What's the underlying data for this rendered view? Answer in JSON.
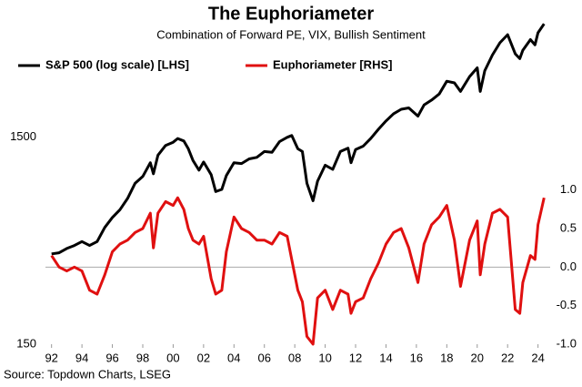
{
  "chart_data": {
    "type": "line",
    "title": "The Euphoriameter",
    "subtitle": "Combination of Forward PE, VIX, Bullish Sentiment",
    "source": "Source: Topdown Charts, LSEG",
    "legend": "top-left",
    "zero_line": true,
    "log_scale_y": true,
    "x": [
      1992.0,
      1992.5,
      1993.0,
      1993.5,
      1994.0,
      1994.5,
      1995.0,
      1995.5,
      1996.0,
      1996.5,
      1997.0,
      1997.5,
      1998.0,
      1998.5,
      1998.7,
      1999.0,
      1999.5,
      2000.0,
      2000.3,
      2000.7,
      2001.0,
      2001.3,
      2001.7,
      2002.0,
      2002.5,
      2002.8,
      2003.2,
      2003.5,
      2004.0,
      2004.5,
      2005.0,
      2005.5,
      2006.0,
      2006.5,
      2007.0,
      2007.5,
      2007.8,
      2008.2,
      2008.5,
      2008.8,
      2009.2,
      2009.5,
      2010.0,
      2010.5,
      2011.0,
      2011.5,
      2011.7,
      2012.0,
      2012.5,
      2013.0,
      2013.5,
      2014.0,
      2014.5,
      2015.0,
      2015.5,
      2016.1,
      2016.5,
      2017.0,
      2017.5,
      2018.0,
      2018.5,
      2018.9,
      2019.5,
      2020.0,
      2020.2,
      2020.5,
      2021.0,
      2021.5,
      2022.0,
      2022.5,
      2022.8,
      2023.0,
      2023.5,
      2023.8,
      2024.0,
      2024.4
    ],
    "xlim": [
      1991.6,
      2024.8
    ],
    "xticks": [
      {
        "value": 1992,
        "label": "92"
      },
      {
        "value": 1994,
        "label": "94"
      },
      {
        "value": 1996,
        "label": "96"
      },
      {
        "value": 1998,
        "label": "98"
      },
      {
        "value": 2000,
        "label": "00"
      },
      {
        "value": 2002,
        "label": "02"
      },
      {
        "value": 2004,
        "label": "04"
      },
      {
        "value": 2006,
        "label": "06"
      },
      {
        "value": 2008,
        "label": "08"
      },
      {
        "value": 2010,
        "label": "10"
      },
      {
        "value": 2012,
        "label": "12"
      },
      {
        "value": 2014,
        "label": "14"
      },
      {
        "value": 2016,
        "label": "16"
      },
      {
        "value": 2018,
        "label": "18"
      },
      {
        "value": 2020,
        "label": "20"
      },
      {
        "value": 2022,
        "label": "22"
      },
      {
        "value": 2024,
        "label": "24"
      }
    ],
    "ylim": [
      150,
      6000
    ],
    "yticks": [
      150,
      1500
    ],
    "y2lim": [
      -1,
      3.3
    ],
    "y2ticks": [
      {
        "value": -1,
        "label": "-1.0"
      },
      -0.5,
      {
        "value": 0,
        "label": "0.0"
      },
      0.5,
      {
        "value": 1,
        "label": "1.0"
      }
    ],
    "series": [
      {
        "name": "S&P 500 (log scale) [LHS]",
        "color": "#000000",
        "axis": "y",
        "values": [
          410,
          415,
          435,
          450,
          470,
          450,
          470,
          550,
          615,
          670,
          760,
          900,
          970,
          1130,
          1000,
          1230,
          1370,
          1420,
          1480,
          1440,
          1320,
          1160,
          1040,
          1140,
          990,
          820,
          840,
          980,
          1130,
          1120,
          1180,
          1200,
          1280,
          1270,
          1430,
          1500,
          1530,
          1320,
          1280,
          900,
          740,
          920,
          1100,
          1050,
          1280,
          1330,
          1130,
          1310,
          1360,
          1480,
          1640,
          1800,
          1950,
          2050,
          2080,
          1900,
          2150,
          2270,
          2430,
          2800,
          2750,
          2500,
          2950,
          3250,
          2500,
          3150,
          3750,
          4300,
          4700,
          3800,
          3600,
          3950,
          4450,
          4200,
          4800,
          5300
        ]
      },
      {
        "name": "Euphoriameter [RHS]",
        "color": "#e01010",
        "axis": "y2",
        "values": [
          0.15,
          0.0,
          -0.05,
          0.0,
          -0.05,
          -0.3,
          -0.35,
          -0.1,
          0.2,
          0.3,
          0.35,
          0.45,
          0.5,
          0.7,
          0.25,
          0.7,
          0.85,
          0.8,
          0.9,
          0.75,
          0.5,
          0.35,
          0.3,
          0.4,
          -0.15,
          -0.35,
          -0.3,
          0.2,
          0.65,
          0.5,
          0.45,
          0.35,
          0.35,
          0.3,
          0.45,
          0.4,
          0.1,
          -0.3,
          -0.45,
          -0.9,
          -1.0,
          -0.4,
          -0.3,
          -0.55,
          -0.3,
          -0.35,
          -0.6,
          -0.45,
          -0.4,
          -0.15,
          0.05,
          0.3,
          0.45,
          0.5,
          0.25,
          -0.2,
          0.3,
          0.55,
          0.65,
          0.8,
          0.35,
          -0.25,
          0.35,
          0.6,
          -0.1,
          0.3,
          0.7,
          0.75,
          0.65,
          -0.55,
          -0.6,
          -0.2,
          0.15,
          0.1,
          0.55,
          0.9
        ]
      }
    ]
  }
}
